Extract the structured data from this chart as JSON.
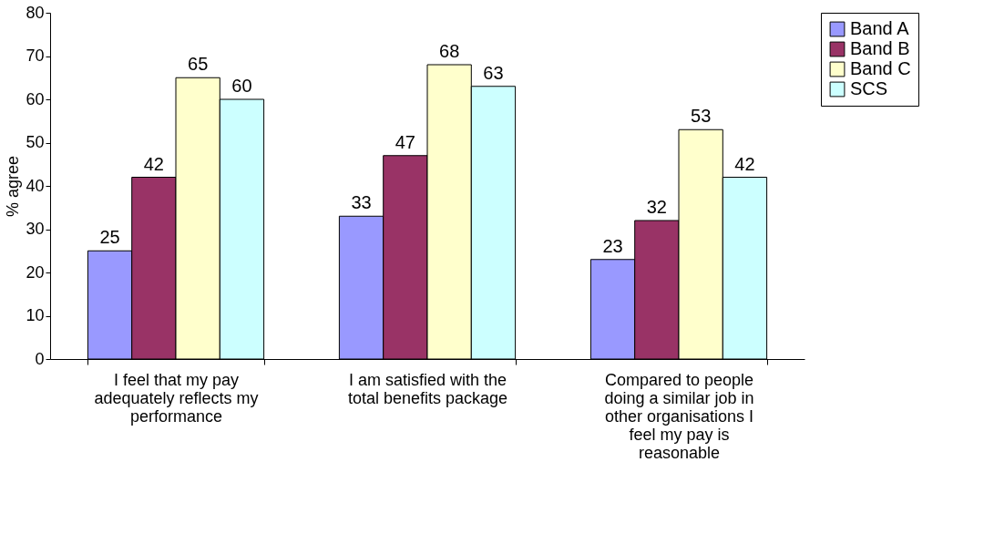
{
  "chart_data": {
    "type": "bar",
    "ylabel": "% agree",
    "categories": [
      "I feel that my pay adequately reflects my performance",
      "I am satisfied with the total benefits package",
      "Compared to people doing a similar job in other organisations I feel my pay is reasonable"
    ],
    "series": [
      {
        "name": "Band A",
        "color": "#9999ff",
        "values": [
          25,
          33,
          23
        ]
      },
      {
        "name": "Band B",
        "color": "#993366",
        "values": [
          42,
          47,
          32
        ]
      },
      {
        "name": "Band C",
        "color": "#ffffcc",
        "values": [
          65,
          68,
          53
        ]
      },
      {
        "name": "SCS",
        "color": "#ccffff",
        "values": [
          60,
          63,
          42
        ]
      }
    ],
    "ylim": [
      0,
      80
    ],
    "yticks": [
      0,
      10,
      20,
      30,
      40,
      50,
      60,
      70,
      80
    ],
    "grid": false,
    "legend": "right",
    "data_labels": true
  }
}
